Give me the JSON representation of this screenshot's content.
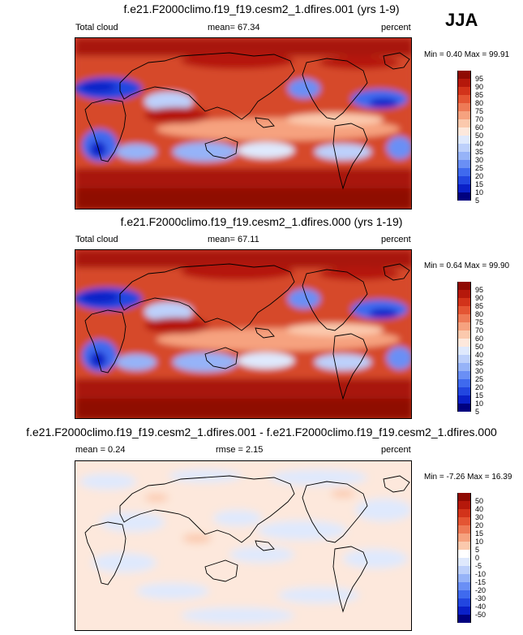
{
  "season": "JJA",
  "colors": {
    "abs_scale": [
      "#00007f",
      "#0a20c8",
      "#2246e0",
      "#3f6aee",
      "#6a8ff5",
      "#96b3f8",
      "#bdd0fb",
      "#dfe9fd",
      "#fde8dc",
      "#fbc9ad",
      "#f6a27f",
      "#ee7a56",
      "#e45533",
      "#d2331a",
      "#b5180b",
      "#8f0a03"
    ],
    "diff_scale": [
      "#00007f",
      "#0a20c8",
      "#2246e0",
      "#3f6aee",
      "#6a8ff5",
      "#96b3f8",
      "#bdd0fb",
      "#dfe9fd",
      "#ffffff",
      "#fde8dc",
      "#fbc9ad",
      "#f6a27f",
      "#ee7a56",
      "#e45533",
      "#d2331a",
      "#b5180b",
      "#8f0a03"
    ]
  },
  "panels": [
    {
      "title": "f.e21.F2000climo.f19_f19.cesm2_1.dfires.001 (yrs 1-9)",
      "left_label": "Total cloud",
      "center_label": "mean=  67.34",
      "units": "percent",
      "stats": "Min =   0.40 Max =  99.91",
      "levels": [
        "95",
        "90",
        "85",
        "80",
        "75",
        "70",
        "60",
        "50",
        "40",
        "35",
        "30",
        "25",
        "20",
        "15",
        "10",
        "5"
      ]
    },
    {
      "title": "f.e21.F2000climo.f19_f19.cesm2_1.dfires.000 (yrs 1-19)",
      "left_label": "Total cloud",
      "center_label": "mean=  67.11",
      "units": "percent",
      "stats": "Min =   0.64 Max =  99.90",
      "levels": [
        "95",
        "90",
        "85",
        "80",
        "75",
        "70",
        "60",
        "50",
        "40",
        "35",
        "30",
        "25",
        "20",
        "15",
        "10",
        "5"
      ]
    },
    {
      "title": "f.e21.F2000climo.f19_f19.cesm2_1.dfires.001 - f.e21.F2000climo.f19_f19.cesm2_1.dfires.000",
      "left_label": "mean =   0.24",
      "center_label": "rmse =   2.15",
      "units": "percent",
      "stats": "Min =  -7.26 Max =  16.39",
      "levels": [
        "50",
        "40",
        "30",
        "20",
        "15",
        "10",
        "5",
        "0",
        "-5",
        "-10",
        "-15",
        "-20",
        "-30",
        "-40",
        "-50"
      ]
    }
  ]
}
